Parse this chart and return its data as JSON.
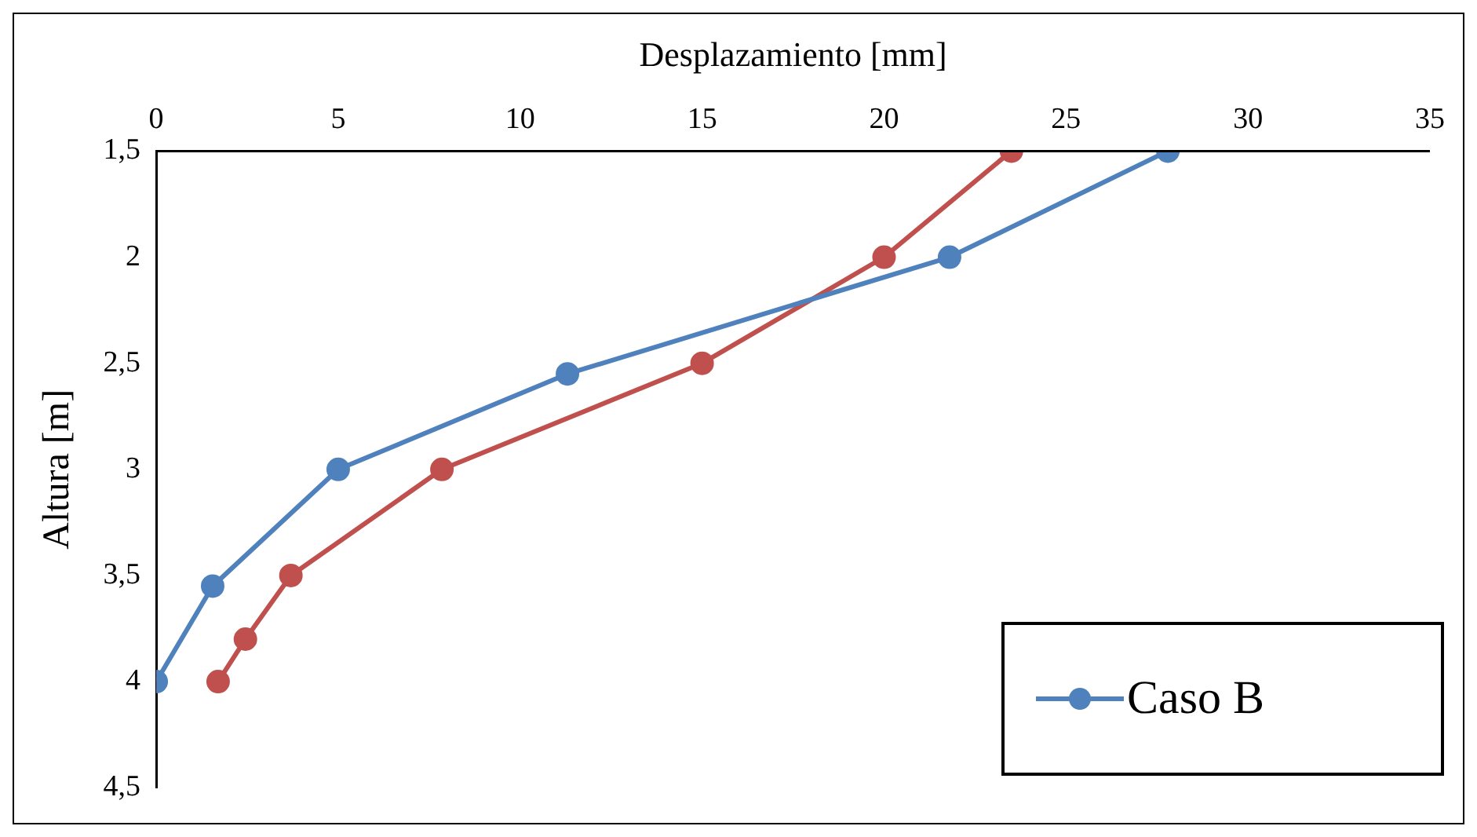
{
  "chart_data": {
    "type": "line",
    "xlabel": "Desplazamiento [mm]",
    "ylabel": "Altura [m]",
    "xlim": [
      0,
      35
    ],
    "xticks": [
      0,
      5,
      10,
      15,
      20,
      25,
      30,
      35
    ],
    "ylim": [
      4.5,
      1.5
    ],
    "yticks": [
      {
        "value": 1.5,
        "label": "1,5"
      },
      2,
      {
        "value": 2.5,
        "label": "2,5"
      },
      3,
      {
        "value": 3.5,
        "label": "3,5"
      },
      4,
      {
        "value": 4.5,
        "label": "4,5"
      }
    ],
    "grid": false,
    "legend": "bottom right",
    "marker": "circle",
    "line_style": "solid",
    "series": [
      {
        "name": "Caso B",
        "color": "#4f81bd",
        "x": [
          27.8,
          21.8,
          11.3,
          5.0,
          1.55,
          0
        ],
        "values": [
          1.5,
          2.0,
          2.55,
          3.0,
          3.55,
          4.0
        ]
      },
      {
        "color": "#c0504d",
        "x": [
          23.5,
          20.0,
          15.0,
          7.85,
          3.7,
          2.45,
          1.7
        ],
        "values": [
          1.5,
          2.0,
          2.5,
          3.0,
          3.5,
          3.8,
          4.0
        ]
      }
    ]
  }
}
